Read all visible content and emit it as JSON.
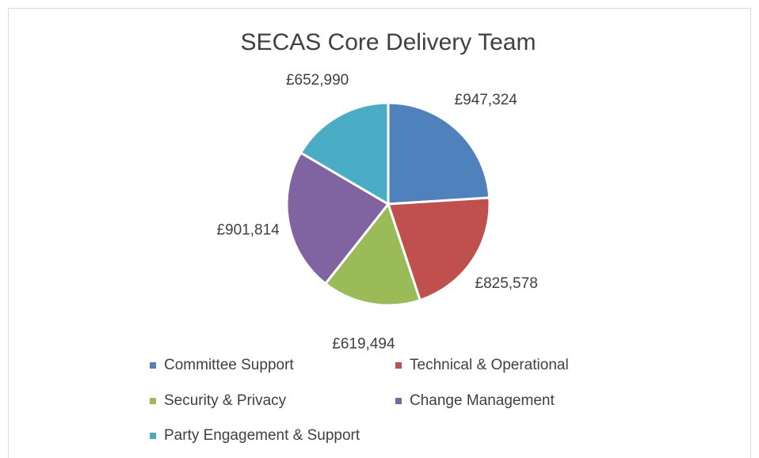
{
  "chart_data": {
    "type": "pie",
    "title": "SECAS Core Delivery Team",
    "categories": [
      "Committee Support",
      "Technical & Operational",
      "Security & Privacy",
      "Change Management",
      "Party Engagement & Support"
    ],
    "values": [
      947324,
      825578,
      619494,
      901814,
      652990
    ],
    "value_labels": [
      "£947,324",
      "£825,578",
      "£619,494",
      "£901,814",
      "£652,990"
    ],
    "colors": [
      "#4f81bd",
      "#c0504d",
      "#9bbb59",
      "#8064a2",
      "#4bacc6"
    ],
    "legend": "bottom"
  }
}
